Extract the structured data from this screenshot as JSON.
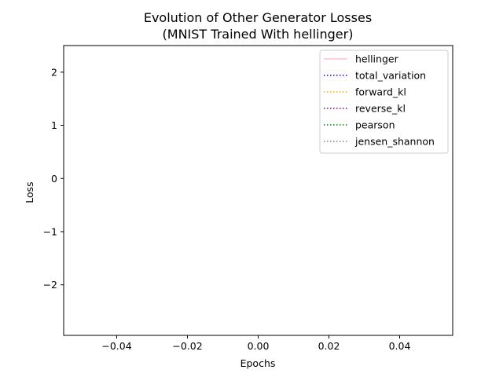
{
  "chart_data": {
    "type": "line",
    "title": "Evolution of Other Generator Losses",
    "subtitle": "(MNIST Trained With hellinger)",
    "xlabel": "Epochs",
    "ylabel": "Loss",
    "xlim": [
      -0.055,
      0.055
    ],
    "ylim": [
      -2.95,
      2.5
    ],
    "x_ticks": [
      -0.04,
      -0.02,
      0.0,
      0.02,
      0.04
    ],
    "x_tick_labels": [
      "−0.04",
      "−0.02",
      "0.00",
      "0.02",
      "0.04"
    ],
    "y_ticks": [
      -2,
      -1,
      0,
      1,
      2
    ],
    "y_tick_labels": [
      "−2",
      "−1",
      "0",
      "1",
      "2"
    ],
    "grid": false,
    "legend_position": "top-right",
    "series": [
      {
        "name": "hellinger",
        "x": [],
        "y": [],
        "color": "#ffc0cb",
        "linestyle": "solid"
      },
      {
        "name": "total_variation",
        "x": [],
        "y": [],
        "color": "#0000ff",
        "linestyle": "dotted"
      },
      {
        "name": "forward_kl",
        "x": [],
        "y": [],
        "color": "#ffa500",
        "linestyle": "dotted"
      },
      {
        "name": "reverse_kl",
        "x": [],
        "y": [],
        "color": "#800080",
        "linestyle": "dotted"
      },
      {
        "name": "pearson",
        "x": [],
        "y": [],
        "color": "#008000",
        "linestyle": "dotted"
      },
      {
        "name": "jensen_shannon",
        "x": [],
        "y": [],
        "color": "#808080",
        "linestyle": "dotted"
      }
    ]
  }
}
